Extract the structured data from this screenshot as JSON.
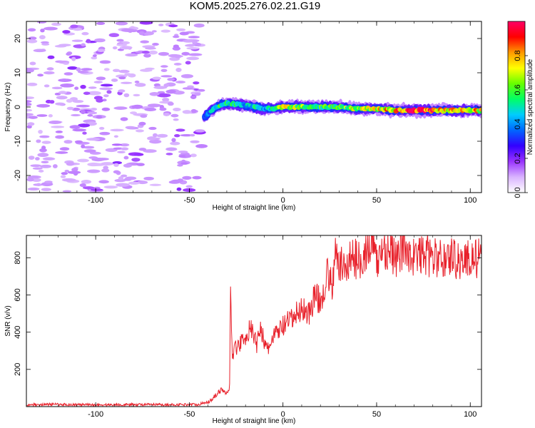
{
  "title": "KOM5.2025.276.02.21.G19",
  "chart_data": [
    {
      "type": "heatmap",
      "name": "spectrogram",
      "xlabel": "Height of straight line (km)",
      "ylabel": "Frequency (Hz)",
      "xlim": [
        -137,
        106
      ],
      "ylim": [
        -25,
        25
      ],
      "xticks": [
        -100,
        -50,
        0,
        50,
        100
      ],
      "yticks": [
        -20,
        -10,
        0,
        10,
        20
      ],
      "colorbar": {
        "label": "Normalized spectral amplitude",
        "range": [
          0,
          1
        ],
        "ticks": [
          0.0,
          0.2,
          0.4,
          0.6,
          0.8
        ],
        "colors": [
          "#ffffff",
          "#d9b3ff",
          "#9933ff",
          "#3300ff",
          "#0066ff",
          "#00ccff",
          "#00ff66",
          "#66ff00",
          "#ffff00",
          "#ff9900",
          "#ff0000",
          "#ff0066"
        ]
      },
      "signal_ridge": {
        "x": [
          -42,
          -38,
          -34,
          -30,
          -25,
          -20,
          -15,
          -10,
          -5,
          0,
          10,
          20,
          30,
          40,
          50,
          60,
          70,
          80,
          90,
          100,
          106
        ],
        "freq": [
          -3,
          -1,
          0.5,
          1,
          0.8,
          0.5,
          0,
          -0.5,
          -0.5,
          0,
          0,
          0,
          0,
          -0.5,
          -0.5,
          -1,
          -1,
          -1,
          -1,
          -1,
          -1
        ],
        "amplitude": [
          0.35,
          0.45,
          0.55,
          0.55,
          0.5,
          0.45,
          0.5,
          0.45,
          0.5,
          0.7,
          0.6,
          0.55,
          0.6,
          0.65,
          0.7,
          0.8,
          0.9,
          0.85,
          0.75,
          0.8,
          0.7
        ]
      },
      "noise_region_x": [
        -137,
        -43
      ]
    },
    {
      "type": "line",
      "name": "snr",
      "xlabel": "Height of straight line (km)",
      "ylabel": "SNR (v/v)",
      "xlim": [
        -137,
        106
      ],
      "ylim": [
        0,
        920
      ],
      "xticks": [
        -100,
        -50,
        0,
        50,
        100
      ],
      "yticks": [
        200,
        400,
        600,
        800
      ],
      "series": [
        {
          "name": "SNR",
          "color": "#e8202a",
          "x": [
            -137,
            -120,
            -100,
            -80,
            -60,
            -45,
            -40,
            -36,
            -33,
            -30,
            -28.5,
            -28,
            -27,
            -26,
            -24,
            -20,
            -17,
            -14,
            -12,
            -9,
            -7,
            -4,
            0,
            5,
            10,
            14,
            17,
            20,
            22,
            24,
            26,
            28,
            30,
            33,
            36,
            40,
            45,
            48,
            50,
            53,
            57,
            60,
            65,
            70,
            75,
            80,
            85,
            90,
            95,
            100,
            106
          ],
          "values": [
            10,
            12,
            9,
            11,
            10,
            12,
            25,
            60,
            90,
            70,
            110,
            645,
            290,
            300,
            330,
            380,
            420,
            330,
            440,
            300,
            330,
            390,
            430,
            470,
            530,
            500,
            600,
            560,
            650,
            720,
            640,
            800,
            770,
            740,
            800,
            790,
            830,
            880,
            760,
            850,
            840,
            790,
            860,
            800,
            820,
            800,
            790,
            810,
            780,
            800,
            790
          ]
        }
      ]
    }
  ]
}
